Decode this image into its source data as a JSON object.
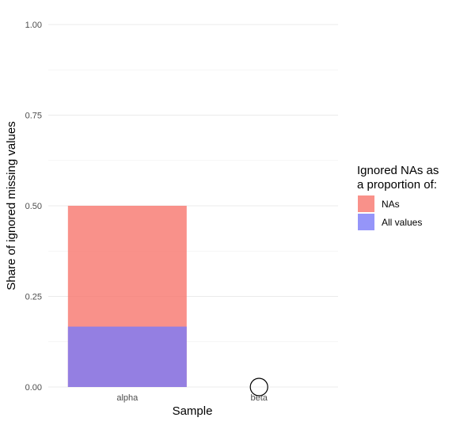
{
  "chart_data": {
    "type": "bar",
    "stacked": false,
    "categories": [
      "alpha",
      "beta"
    ],
    "series": [
      {
        "name": "NAs",
        "values": [
          0.5,
          0
        ],
        "color": "#f8766d"
      },
      {
        "name": "All values",
        "values": [
          0.1667,
          0
        ],
        "color": "#7b7bf7"
      }
    ],
    "xlabel": "Sample",
    "ylabel": "Share of ignored missing values",
    "ylim": [
      0,
      1
    ],
    "yticks": [
      "0.00",
      "0.25",
      "0.50",
      "0.75",
      "1.00"
    ],
    "grid": true,
    "legend": {
      "title_line1": "Ignored NAs as",
      "title_line2": "a proportion of:",
      "position": "right"
    },
    "annotations": [
      {
        "category": "beta",
        "marker": "open-circle",
        "value": 0
      }
    ]
  }
}
